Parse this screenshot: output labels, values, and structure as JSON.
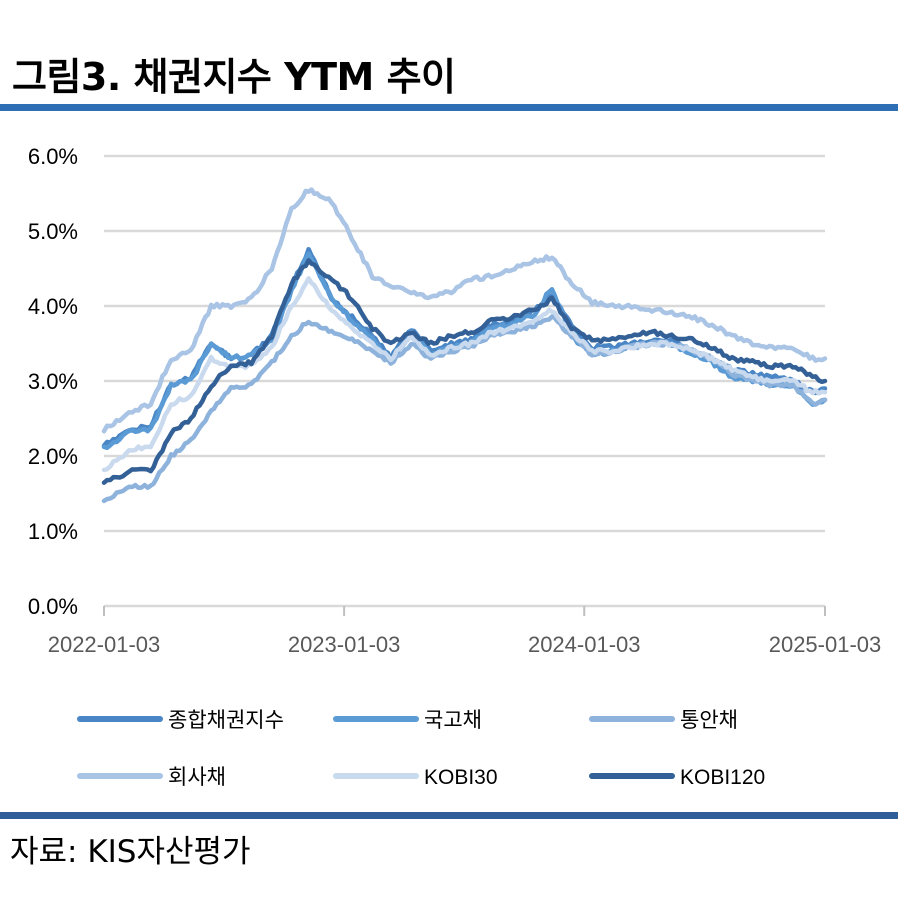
{
  "figure_title": "그림3. 채권지수 YTM 추이",
  "source_text": "자료: KIS자산평가",
  "chart_data": {
    "type": "line",
    "title": "",
    "xlabel": "",
    "ylabel": "",
    "x_ticks": [
      "2022-01-03",
      "2023-01-03",
      "2024-01-03",
      "2025-01-03"
    ],
    "x_range": [
      "2022-01-03",
      "2025-01-03"
    ],
    "y_ticks": [
      "0.0%",
      "1.0%",
      "2.0%",
      "3.0%",
      "4.0%",
      "5.0%",
      "6.0%"
    ],
    "ylim": [
      0,
      6
    ],
    "grid": "horizontal",
    "legend_position": "bottom",
    "x": [
      "2022-01-03",
      "2022-02-15",
      "2022-03-15",
      "2022-04-15",
      "2022-05-15",
      "2022-06-15",
      "2022-07-15",
      "2022-08-15",
      "2022-09-15",
      "2022-10-15",
      "2022-11-10",
      "2022-12-15",
      "2023-01-15",
      "2023-02-15",
      "2023-03-15",
      "2023-04-15",
      "2023-05-15",
      "2023-06-15",
      "2023-07-15",
      "2023-08-15",
      "2023-09-15",
      "2023-10-20",
      "2023-11-15",
      "2023-12-15",
      "2024-01-15",
      "2024-02-15",
      "2024-03-15",
      "2024-04-15",
      "2024-05-15",
      "2024-06-15",
      "2024-07-15",
      "2024-08-15",
      "2024-09-15",
      "2024-10-15",
      "2024-11-15",
      "2024-12-15",
      "2025-01-03"
    ],
    "series": [
      {
        "name": "종합채권지수",
        "color": "#4a86c5",
        "values": [
          2.15,
          2.35,
          2.4,
          2.95,
          3.05,
          3.5,
          3.3,
          3.35,
          3.6,
          4.25,
          4.75,
          4.1,
          3.85,
          3.6,
          3.3,
          3.7,
          3.4,
          3.5,
          3.55,
          3.75,
          3.8,
          3.95,
          4.15,
          3.75,
          3.45,
          3.45,
          3.5,
          3.55,
          3.55,
          3.4,
          3.3,
          3.15,
          3.1,
          3.05,
          3.0,
          2.85,
          2.9
        ]
      },
      {
        "name": "국고채",
        "color": "#5b9bd5",
        "values": [
          2.1,
          2.35,
          2.35,
          2.95,
          3.0,
          3.5,
          3.3,
          3.35,
          3.55,
          4.2,
          4.7,
          4.1,
          3.8,
          3.55,
          3.25,
          3.65,
          3.35,
          3.45,
          3.5,
          3.7,
          3.75,
          3.9,
          4.25,
          3.6,
          3.35,
          3.4,
          3.45,
          3.5,
          3.5,
          3.35,
          3.25,
          3.05,
          3.0,
          2.95,
          2.95,
          2.7,
          2.75
        ]
      },
      {
        "name": "통안채",
        "color": "#8db2dc",
        "values": [
          1.4,
          1.6,
          1.6,
          2.0,
          2.2,
          2.6,
          2.9,
          2.95,
          3.25,
          3.6,
          3.8,
          3.65,
          3.55,
          3.4,
          3.25,
          3.5,
          3.3,
          3.4,
          3.45,
          3.6,
          3.65,
          3.75,
          3.85,
          3.6,
          3.35,
          3.4,
          3.45,
          3.5,
          3.5,
          3.4,
          3.3,
          3.1,
          3.0,
          2.95,
          2.95,
          2.7,
          2.75
        ]
      },
      {
        "name": "회사채",
        "color": "#a9c4e4",
        "values": [
          2.35,
          2.6,
          2.7,
          3.3,
          3.4,
          4.0,
          4.0,
          4.1,
          4.5,
          5.3,
          5.55,
          5.4,
          4.9,
          4.4,
          4.25,
          4.2,
          4.1,
          4.2,
          4.35,
          4.4,
          4.5,
          4.6,
          4.65,
          4.3,
          4.05,
          4.0,
          4.0,
          3.95,
          3.9,
          3.85,
          3.75,
          3.6,
          3.5,
          3.45,
          3.45,
          3.3,
          3.3
        ]
      },
      {
        "name": "KOBI30",
        "color": "#c9d9ee",
        "values": [
          1.8,
          2.1,
          2.1,
          2.7,
          2.8,
          3.3,
          3.2,
          3.2,
          3.45,
          4.0,
          4.35,
          3.95,
          3.7,
          3.5,
          3.3,
          3.6,
          3.35,
          3.45,
          3.5,
          3.65,
          3.7,
          3.8,
          3.95,
          3.65,
          3.4,
          3.4,
          3.45,
          3.5,
          3.5,
          3.4,
          3.3,
          3.15,
          3.05,
          3.0,
          3.0,
          2.85,
          2.85
        ]
      },
      {
        "name": "KOBI120",
        "color": "#336096",
        "values": [
          1.65,
          1.8,
          1.8,
          2.3,
          2.5,
          2.95,
          3.2,
          3.25,
          3.6,
          4.3,
          4.6,
          4.35,
          4.1,
          3.7,
          3.5,
          3.65,
          3.5,
          3.6,
          3.65,
          3.8,
          3.85,
          3.95,
          4.1,
          3.7,
          3.55,
          3.55,
          3.6,
          3.65,
          3.6,
          3.55,
          3.45,
          3.3,
          3.25,
          3.2,
          3.2,
          3.05,
          3.0
        ]
      }
    ]
  }
}
